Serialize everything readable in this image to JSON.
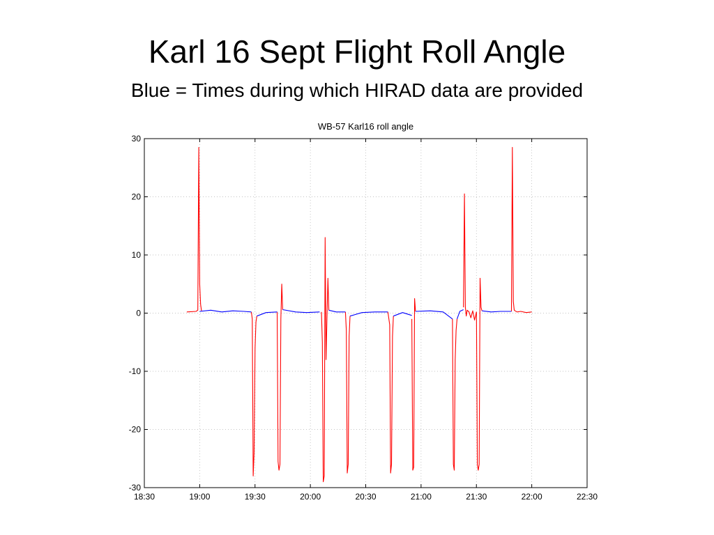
{
  "slide": {
    "title": "Karl 16 Sept Flight Roll Angle",
    "subtitle": "Blue = Times during which HIRAD data are provided"
  },
  "chart_data": {
    "type": "line",
    "title": "WB-57 Karl16 roll angle",
    "xlabel": "",
    "ylabel": "",
    "x_ticks": [
      "18:30",
      "19:00",
      "19:30",
      "20:00",
      "20:30",
      "21:00",
      "21:30",
      "22:00",
      "22:30"
    ],
    "y_ticks": [
      30,
      20,
      10,
      0,
      -10,
      -20,
      -30
    ],
    "xlim": [
      "18:30",
      "22:30"
    ],
    "ylim": [
      -30,
      30
    ],
    "grid": true,
    "colors": {
      "red": "#ff0000",
      "blue": "#0000ff"
    },
    "series": [
      {
        "color": "red",
        "segments": [
          {
            "x": [
              "18:53",
              "18:58",
              "18:59",
              "18:59.5",
              "19:00",
              "19:00.5",
              "19:01"
            ],
            "y": [
              0.2,
              0.3,
              0.5,
              28.5,
              5,
              1.5,
              0.4
            ]
          },
          {
            "x": [
              "19:28",
              "19:28.5",
              "19:29",
              "19:29.5",
              "19:30",
              "19:30.5",
              "19:31"
            ],
            "y": [
              0.2,
              -1,
              -28,
              -24,
              -6,
              -1.5,
              -0.5
            ]
          },
          {
            "x": [
              "19:42",
              "19:42.5",
              "19:43",
              "19:43.5",
              "19:44",
              "19:44.5",
              "19:45"
            ],
            "y": [
              0.2,
              -25.5,
              -27,
              -26,
              -1,
              5,
              0.6
            ]
          },
          {
            "x": [
              "20:06",
              "20:06.5",
              "20:07",
              "20:07.5",
              "20:08",
              "20:08.5",
              "20:09",
              "20:09.5",
              "20:10"
            ],
            "y": [
              0.2,
              -5,
              -29,
              -28,
              13,
              -8,
              -1,
              6,
              0.5
            ]
          },
          {
            "x": [
              "20:19",
              "20:19.5",
              "20:20",
              "20:20.5",
              "20:21",
              "20:21.5"
            ],
            "y": [
              0.2,
              -3,
              -27.5,
              -26,
              -4,
              -0.5
            ]
          },
          {
            "x": [
              "20:42",
              "20:43",
              "20:43.5",
              "20:44",
              "20:44.5",
              "20:45"
            ],
            "y": [
              0.2,
              -2,
              -27.5,
              -26,
              -4,
              -0.5
            ]
          },
          {
            "x": [
              "20:55",
              "20:55.5",
              "20:56",
              "20:56.5",
              "20:57"
            ],
            "y": [
              -1,
              -27,
              -26.5,
              2.5,
              0.3
            ]
          },
          {
            "x": [
              "21:17",
              "21:17.5",
              "21:18",
              "21:18.5",
              "21:19",
              "21:19.5"
            ],
            "y": [
              -1,
              -26,
              -27,
              -8,
              -3,
              -1
            ]
          },
          {
            "x": [
              "21:23",
              "21:23.5",
              "21:24",
              "21:24.5",
              "21:25",
              "21:26",
              "21:27",
              "21:28",
              "21:29",
              "21:30"
            ],
            "y": [
              1,
              20.5,
              1,
              -0.5,
              0.5,
              0.2,
              -0.8,
              0.4,
              -1.2,
              0.2
            ]
          },
          {
            "x": [
              "21:30",
              "21:30.5",
              "21:31",
              "21:31.5",
              "21:32",
              "21:32.5",
              "21:33"
            ],
            "y": [
              0.2,
              -26,
              -27,
              -26,
              6,
              1,
              0.4
            ]
          },
          {
            "x": [
              "21:49",
              "21:49.5",
              "21:50",
              "21:50.5",
              "21:51",
              "21:52",
              "21:54",
              "21:57",
              "22:00"
            ],
            "y": [
              0.3,
              28.5,
              2,
              0.5,
              0.4,
              0.2,
              0.3,
              0.1,
              0.2
            ]
          }
        ]
      },
      {
        "color": "blue",
        "segments": [
          {
            "x": [
              "19:00",
              "19:06",
              "19:12",
              "19:18",
              "19:24",
              "19:28"
            ],
            "y": [
              0.3,
              0.5,
              0.2,
              0.4,
              0.3,
              0.2
            ]
          },
          {
            "x": [
              "19:31",
              "19:36",
              "19:42"
            ],
            "y": [
              -0.5,
              0.1,
              0.2
            ]
          },
          {
            "x": [
              "19:45",
              "19:52",
              "19:58",
              "20:05"
            ],
            "y": [
              0.6,
              0.2,
              0.1,
              0.2
            ]
          },
          {
            "x": [
              "20:10",
              "20:14",
              "20:19"
            ],
            "y": [
              0.5,
              0.2,
              0.2
            ]
          },
          {
            "x": [
              "20:21.5",
              "20:28",
              "20:35",
              "20:42"
            ],
            "y": [
              -0.5,
              0.1,
              0.2,
              0.2
            ]
          },
          {
            "x": [
              "20:45",
              "20:50",
              "20:55"
            ],
            "y": [
              -0.5,
              0.1,
              -0.4
            ]
          },
          {
            "x": [
              "20:57",
              "21:05",
              "21:12",
              "21:17"
            ],
            "y": [
              0.3,
              0.4,
              0.2,
              -1
            ]
          },
          {
            "x": [
              "21:19.5",
              "21:21",
              "21:23"
            ],
            "y": [
              -1,
              0.3,
              0.6
            ]
          },
          {
            "x": [
              "21:33",
              "21:38",
              "21:43",
              "21:49"
            ],
            "y": [
              0.4,
              0.2,
              0.3,
              0.3
            ]
          }
        ]
      }
    ]
  }
}
